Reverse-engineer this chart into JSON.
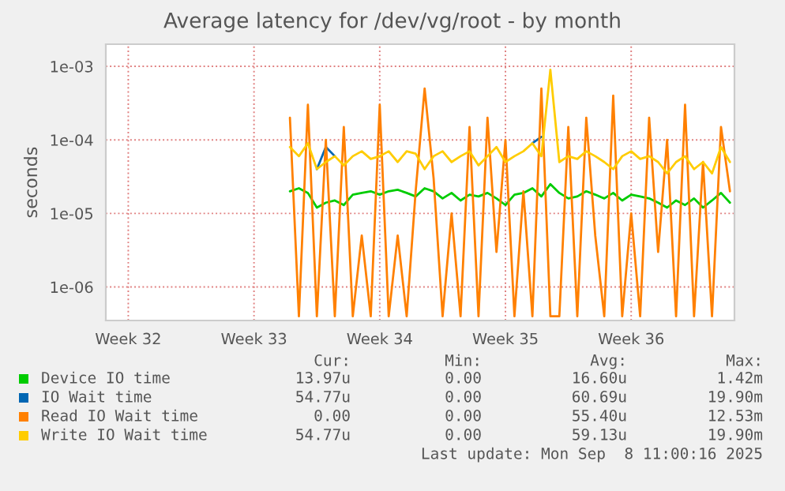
{
  "chart_data": {
    "type": "line",
    "title": "Average latency for /dev/vg/root - by month",
    "ylabel": "seconds",
    "categories": [
      null,
      null,
      "Week 32",
      null,
      null,
      null,
      null,
      null,
      null,
      null,
      null,
      null,
      null,
      null,
      null,
      null,
      "Week 33",
      null,
      null,
      null,
      null,
      null,
      null,
      null,
      null,
      null,
      null,
      null,
      null,
      null,
      "Week 34",
      null,
      null,
      null,
      null,
      null,
      null,
      null,
      null,
      null,
      null,
      null,
      null,
      null,
      "Week 35",
      null,
      null,
      null,
      null,
      null,
      null,
      null,
      null,
      null,
      null,
      null,
      null,
      null,
      "Week 36",
      null,
      null,
      null,
      null,
      null,
      null,
      null,
      null,
      null,
      null,
      null
    ],
    "series": [
      {
        "name": "Device IO time",
        "color": "#00cc00",
        "values": [
          null,
          null,
          null,
          null,
          null,
          null,
          null,
          null,
          null,
          null,
          null,
          null,
          null,
          null,
          null,
          null,
          null,
          null,
          null,
          null,
          2e-05,
          2.2e-05,
          1.9e-05,
          1.2e-05,
          1.4e-05,
          1.5e-05,
          1.3e-05,
          1.8e-05,
          1.9e-05,
          2e-05,
          1.8e-05,
          2e-05,
          2.1e-05,
          1.9e-05,
          1.7e-05,
          2.2e-05,
          2e-05,
          1.6e-05,
          1.9e-05,
          1.5e-05,
          1.8e-05,
          1.7e-05,
          1.9e-05,
          1.6e-05,
          1.3e-05,
          1.8e-05,
          1.9e-05,
          2.2e-05,
          1.7e-05,
          2.5e-05,
          1.9e-05,
          1.6e-05,
          1.7e-05,
          2e-05,
          1.8e-05,
          1.6e-05,
          1.9e-05,
          1.5e-05,
          1.8e-05,
          1.7e-05,
          1.6e-05,
          1.4e-05,
          1.2e-05,
          1.5e-05,
          1.3e-05,
          1.6e-05,
          1.2e-05,
          1.5e-05,
          1.9e-05,
          1.4e-05
        ]
      },
      {
        "name": "IO Wait time",
        "color": "#0066b3",
        "values": [
          null,
          null,
          null,
          null,
          null,
          null,
          null,
          null,
          null,
          null,
          null,
          null,
          null,
          null,
          null,
          null,
          null,
          null,
          null,
          null,
          null,
          null,
          null,
          4e-05,
          8e-05,
          6e-05,
          null,
          null,
          null,
          null,
          null,
          null,
          null,
          null,
          null,
          null,
          null,
          null,
          null,
          null,
          null,
          null,
          null,
          null,
          null,
          null,
          null,
          9e-05,
          0.00011,
          null,
          null,
          null,
          null,
          null,
          null,
          null,
          null,
          null,
          null,
          null,
          null,
          null,
          null,
          null,
          null,
          null,
          null,
          null,
          null,
          null
        ]
      },
      {
        "name": "Read IO Wait time",
        "color": "#ff8000",
        "values": [
          null,
          null,
          null,
          null,
          null,
          null,
          null,
          null,
          null,
          null,
          null,
          null,
          null,
          null,
          null,
          null,
          null,
          null,
          null,
          null,
          0.0002,
          4e-07,
          0.0003,
          4e-07,
          0.0001,
          4e-07,
          0.00015,
          4e-07,
          5e-06,
          4e-07,
          0.0003,
          4e-07,
          5e-06,
          4e-07,
          2e-05,
          0.0005,
          3e-05,
          4e-07,
          1e-05,
          4e-07,
          0.00015,
          4e-07,
          0.0002,
          3e-06,
          0.0001,
          4e-07,
          2e-05,
          4e-07,
          0.0005,
          4e-07,
          4e-07,
          0.00015,
          4e-07,
          0.0002,
          5e-06,
          4e-07,
          0.0004,
          4e-07,
          1e-05,
          4e-07,
          0.0002,
          3e-06,
          0.0001,
          4e-07,
          0.0003,
          4e-07,
          5e-05,
          4e-07,
          0.00015,
          2e-05
        ]
      },
      {
        "name": "Write IO Wait time",
        "color": "#ffcc00",
        "values": [
          null,
          null,
          null,
          null,
          null,
          null,
          null,
          null,
          null,
          null,
          null,
          null,
          null,
          null,
          null,
          null,
          null,
          null,
          null,
          null,
          8e-05,
          6e-05,
          9e-05,
          4e-05,
          5e-05,
          6e-05,
          4.5e-05,
          6e-05,
          7e-05,
          5.5e-05,
          6e-05,
          7e-05,
          5e-05,
          7e-05,
          6.5e-05,
          4e-05,
          6e-05,
          7e-05,
          5e-05,
          6e-05,
          7e-05,
          4.5e-05,
          6e-05,
          8e-05,
          5e-05,
          6e-05,
          7e-05,
          9e-05,
          6e-05,
          0.0009,
          5e-05,
          6e-05,
          5.5e-05,
          7e-05,
          6e-05,
          5e-05,
          4e-05,
          6e-05,
          7e-05,
          5.5e-05,
          6e-05,
          5e-05,
          3.5e-05,
          5e-05,
          6e-05,
          4e-05,
          5e-05,
          3.5e-05,
          8e-05,
          5e-05
        ]
      }
    ],
    "log": true,
    "ylim": [
      3.5e-07,
      0.002
    ],
    "yticks": [
      {
        "value": 1e-06,
        "label": "1e-06"
      },
      {
        "value": 1e-05,
        "label": "1e-05"
      },
      {
        "value": 0.0001,
        "label": "1e-04"
      },
      {
        "value": 0.001,
        "label": "1e-03"
      }
    ],
    "grid": true,
    "legend": "bottom",
    "line_style": "solid",
    "marker": "none",
    "annotations": [
      "Cur:",
      "Min:",
      "Avg:",
      "Max:",
      "13.97u",
      "0.00",
      "16.60u",
      "1.42m",
      "54.77u",
      "0.00",
      "60.69u",
      "19.90m",
      "0.00",
      "0.00",
      "55.40u",
      "12.53m",
      "54.77u",
      "0.00",
      "59.13u",
      "19.90m",
      "Last update: Mon Sep  8 11:00:16 2025"
    ]
  }
}
